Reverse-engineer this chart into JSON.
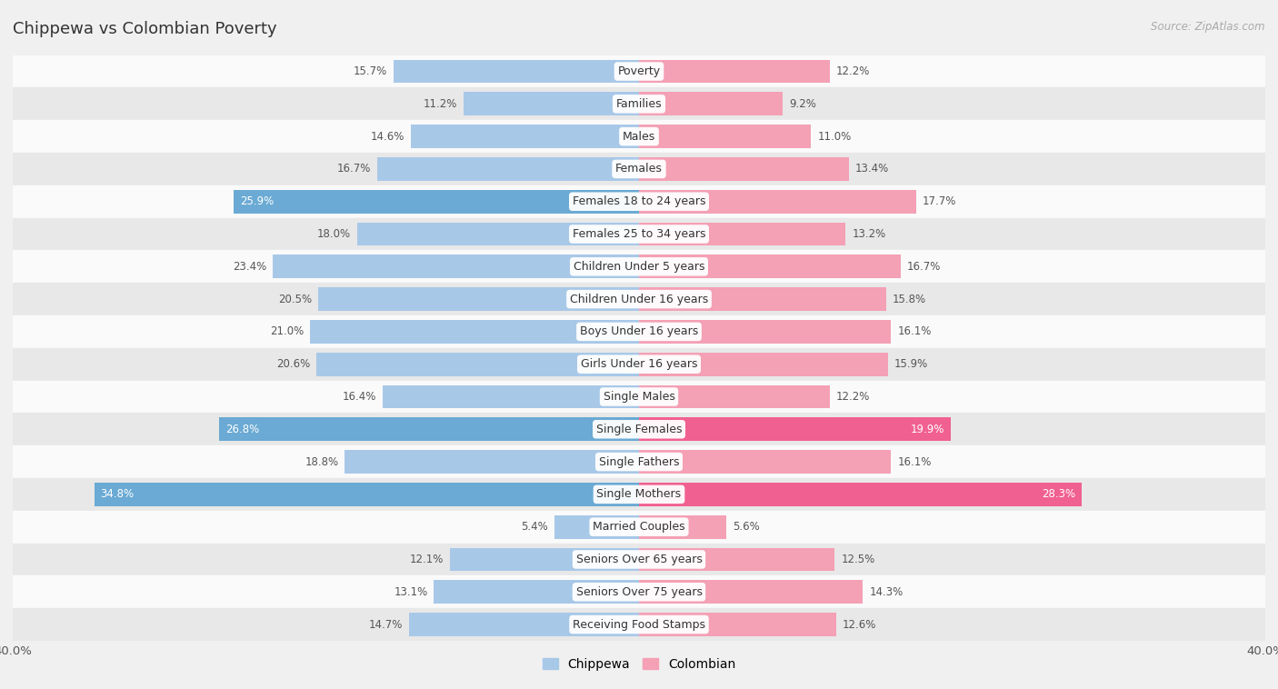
{
  "title": "Chippewa vs Colombian Poverty",
  "source": "Source: ZipAtlas.com",
  "categories": [
    "Poverty",
    "Families",
    "Males",
    "Females",
    "Females 18 to 24 years",
    "Females 25 to 34 years",
    "Children Under 5 years",
    "Children Under 16 years",
    "Boys Under 16 years",
    "Girls Under 16 years",
    "Single Males",
    "Single Females",
    "Single Fathers",
    "Single Mothers",
    "Married Couples",
    "Seniors Over 65 years",
    "Seniors Over 75 years",
    "Receiving Food Stamps"
  ],
  "chippewa": [
    15.7,
    11.2,
    14.6,
    16.7,
    25.9,
    18.0,
    23.4,
    20.5,
    21.0,
    20.6,
    16.4,
    26.8,
    18.8,
    34.8,
    5.4,
    12.1,
    13.1,
    14.7
  ],
  "colombian": [
    12.2,
    9.2,
    11.0,
    13.4,
    17.7,
    13.2,
    16.7,
    15.8,
    16.1,
    15.9,
    12.2,
    19.9,
    16.1,
    28.3,
    5.6,
    12.5,
    14.3,
    12.6
  ],
  "chippewa_color": "#a8c8e8",
  "colombian_color": "#f4a0b5",
  "chippewa_highlight_color": "#6aaad4",
  "colombian_highlight_color": "#f06090",
  "background_color": "#f0f0f0",
  "row_light_color": "#fafafa",
  "row_dark_color": "#e8e8e8",
  "xlim": 40.0,
  "bar_height": 0.72,
  "legend_labels": [
    "Chippewa",
    "Colombian"
  ]
}
